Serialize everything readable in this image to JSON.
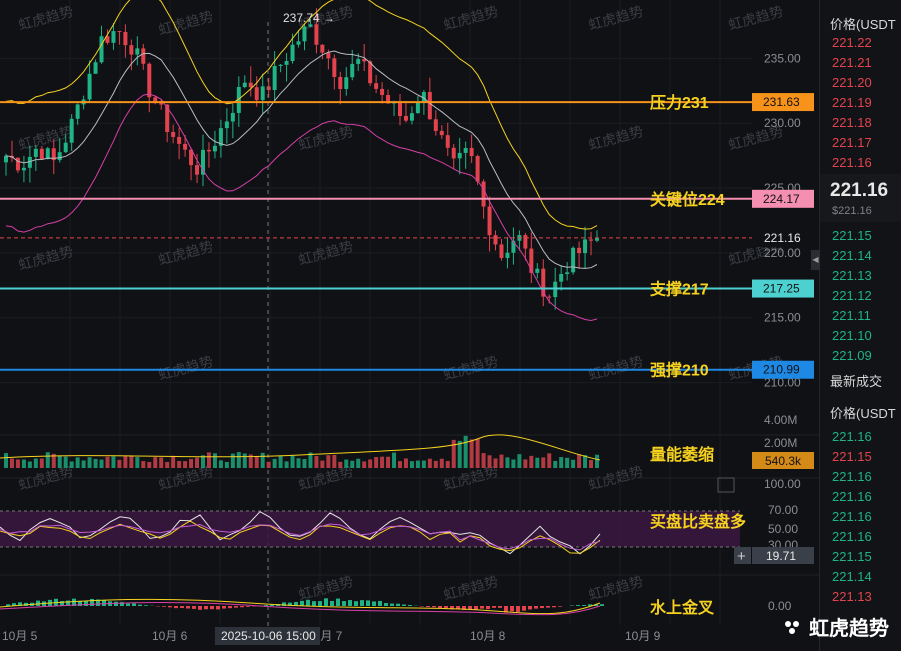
{
  "chart_data": {
    "type": "candlestick",
    "price_axis": {
      "ticks": [
        235.0,
        230.0,
        225.0,
        220.0,
        215.0,
        210.0
      ],
      "ylim": [
        207.5,
        239.5
      ]
    },
    "x_axis": {
      "ticks": [
        "10月 5",
        "10月 6",
        "10月 7",
        "10月 8",
        "10月 9"
      ]
    },
    "crosshair_time": "2025-10-06 15:00",
    "high_marker": "237.74 →",
    "current_price": "221.16",
    "levels": [
      {
        "name": "压力231",
        "value": 231.63,
        "label": "231.63",
        "color": "#f7931a"
      },
      {
        "name": "关键位224",
        "value": 224.17,
        "label": "224.17",
        "color": "#f48fb1"
      },
      {
        "name": "支撑217",
        "value": 217.25,
        "label": "217.25",
        "color": "#4dd0d0"
      },
      {
        "name": "强撑210",
        "value": 210.99,
        "label": "210.99",
        "color": "#1e88e5"
      }
    ],
    "volume_axis": {
      "ticks": [
        "4.00M",
        "2.00M"
      ],
      "current": "540.3k"
    },
    "volume_annotation": "量能萎缩",
    "rsi_axis": {
      "ticks": [
        "100.00",
        "70.00",
        "50.00",
        "30.00"
      ],
      "current": "19.71"
    },
    "rsi_annotation": "买盘比卖盘多",
    "macd_axis": {
      "ticks": [
        "0.00"
      ]
    },
    "macd_annotation": "水上金叉",
    "close_path": [
      227.5,
      226.8,
      228.2,
      227.0,
      229.5,
      233.0,
      236.5,
      237.2,
      235.8,
      232.5,
      230.0,
      228.0,
      226.5,
      228.5,
      230.8,
      233.5,
      232.0,
      234.2,
      236.0,
      237.5,
      235.5,
      233.2,
      234.8,
      233.0,
      231.5,
      230.2,
      232.5,
      229.5,
      226.5,
      227.8,
      223.0,
      219.8,
      221.5,
      218.5,
      216.8,
      219.0,
      220.2,
      221.16
    ],
    "watermark": "虹虎趋势"
  },
  "orderbook": {
    "header": "价格(USDT",
    "asks": [
      "221.22",
      "221.21",
      "221.20",
      "221.19",
      "221.18",
      "221.17",
      "221.16"
    ],
    "price": "221.16",
    "price_sub": "$221.16",
    "bids": [
      "221.15",
      "221.14",
      "221.13",
      "221.12",
      "221.11",
      "221.10",
      "221.09"
    ],
    "trades_title": "最新成交",
    "trades_header": "价格(USDT",
    "trades": [
      {
        "p": "221.16",
        "side": "green"
      },
      {
        "p": "221.15",
        "side": "red"
      },
      {
        "p": "221.16",
        "side": "green"
      },
      {
        "p": "221.16",
        "side": "green"
      },
      {
        "p": "221.16",
        "side": "green"
      },
      {
        "p": "221.16",
        "side": "green"
      },
      {
        "p": "221.15",
        "side": "green"
      },
      {
        "p": "221.14",
        "side": "green"
      },
      {
        "p": "221.13",
        "side": "red"
      }
    ]
  },
  "logo": {
    "text": "虹虎趋势"
  },
  "colors": {
    "up": "#1fb386",
    "down": "#e2434d",
    "yellow": "#f6d21f"
  }
}
